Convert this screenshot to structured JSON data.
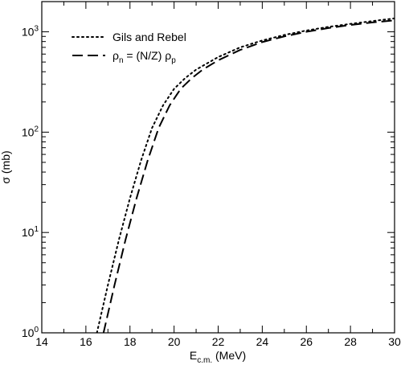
{
  "chart_data": {
    "type": "line",
    "xlabel": {
      "main": "E",
      "sub": "c.m.",
      "unit": " (MeV)"
    },
    "ylabel": "σ (mb)",
    "xlim": [
      14,
      30
    ],
    "ylim": [
      1,
      2000
    ],
    "y_scale": "log",
    "x_ticks": [
      14,
      16,
      18,
      20,
      22,
      24,
      26,
      28,
      30
    ],
    "x_tick_labels": [
      "14",
      "16",
      "18",
      "20",
      "22",
      "24",
      "26",
      "28",
      "30"
    ],
    "y_ticks": [
      {
        "value": 1,
        "base": "10",
        "exp": "0"
      },
      {
        "value": 10,
        "base": "10",
        "exp": "1"
      },
      {
        "value": 100,
        "base": "10",
        "exp": "2"
      },
      {
        "value": 1000,
        "base": "10",
        "exp": "3"
      }
    ],
    "grid": false,
    "legend": {
      "position": "top-left",
      "entries": [
        {
          "series": 0,
          "parts": [
            {
              "t": "Gils and Rebel"
            }
          ]
        },
        {
          "series": 1,
          "parts": [
            {
              "t": "ρ"
            },
            {
              "t": "n",
              "sub": true
            },
            {
              "t": " = (N/Z) ρ"
            },
            {
              "t": "p",
              "sub": true
            }
          ]
        }
      ]
    },
    "series": [
      {
        "style": "dotted",
        "color": "#000000",
        "x": [
          16.5,
          17.0,
          17.5,
          18.0,
          18.5,
          19.0,
          19.5,
          20.0,
          20.5,
          21.0,
          22.0,
          23.0,
          24.0,
          25.0,
          26.0,
          27.0,
          28.0,
          29.0,
          30.0
        ],
        "y": [
          1.0,
          3.0,
          8.5,
          22,
          52,
          110,
          185,
          270,
          345,
          420,
          560,
          700,
          820,
          930,
          1030,
          1120,
          1200,
          1280,
          1360
        ]
      },
      {
        "style": "dashed",
        "color": "#000000",
        "x": [
          16.8,
          17.3,
          17.8,
          18.3,
          18.8,
          19.3,
          19.8,
          20.3,
          20.8,
          21.3,
          22.0,
          23.0,
          24.0,
          25.0,
          26.0,
          27.0,
          28.0,
          29.0,
          30.0
        ],
        "y": [
          1.0,
          3.0,
          8.5,
          22,
          52,
          110,
          185,
          270,
          345,
          420,
          520,
          660,
          790,
          900,
          1000,
          1090,
          1170,
          1240,
          1300
        ]
      }
    ]
  }
}
